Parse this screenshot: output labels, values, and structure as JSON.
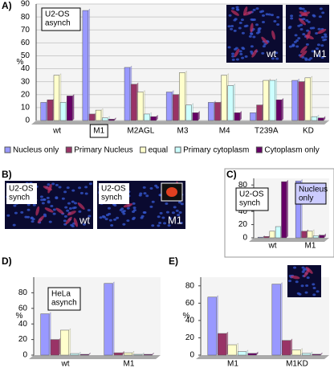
{
  "chart_data": [
    {
      "type": "bar",
      "panel": "A)",
      "annotation": [
        "U2-OS",
        "asynch"
      ],
      "inset_labels": [
        "wt",
        "M1"
      ],
      "y_label": "%",
      "categories": [
        "wt",
        "M1",
        "M2AGL",
        "M3",
        "M4",
        "T239A",
        "KD"
      ],
      "series": [
        {
          "name": "Nucleus only",
          "color": "#9999ff",
          "values": [
            14,
            85,
            41,
            22,
            14,
            6,
            31
          ]
        },
        {
          "name": "Primary Nucleus",
          "color": "#993366",
          "values": [
            16,
            5,
            28,
            20,
            14,
            12,
            30
          ]
        },
        {
          "name": "equal",
          "color": "#ffffcc",
          "values": [
            35,
            8,
            22,
            37,
            35,
            31,
            33
          ]
        },
        {
          "name": "Primary cytoplasm",
          "color": "#ccffff",
          "values": [
            14,
            2,
            5,
            12,
            27,
            31,
            3
          ]
        },
        {
          "name": "Cytoplasm only",
          "color": "#660066",
          "values": [
            19,
            1,
            3,
            6,
            6,
            16,
            2
          ]
        }
      ],
      "ylim": [
        0,
        90
      ],
      "yticks": [
        0,
        10,
        20,
        30,
        40,
        50,
        60,
        70,
        80,
        90
      ],
      "grid": true
    },
    {
      "type": "bar",
      "panel": "C)",
      "annotation": [
        "U2-OS",
        "synch"
      ],
      "note": [
        "Nucleus",
        "only"
      ],
      "y_label": "%",
      "categories": [
        "wt",
        "M1"
      ],
      "series": [
        {
          "name": "Nucleus only",
          "color": "#9999ff",
          "values": [
            1,
            86
          ]
        },
        {
          "name": "Primary Nucleus",
          "color": "#993366",
          "values": [
            2,
            10
          ]
        },
        {
          "name": "equal",
          "color": "#ffffcc",
          "values": [
            10,
            10
          ]
        },
        {
          "name": "Primary cytoplasm",
          "color": "#ccffff",
          "values": [
            17,
            3
          ]
        },
        {
          "name": "Cytoplasm only",
          "color": "#660066",
          "values": [
            85,
            4
          ]
        }
      ],
      "ylim": [
        0,
        90
      ],
      "yticks": [
        0,
        20,
        40,
        60,
        80
      ],
      "grid": false
    },
    {
      "type": "bar",
      "panel": "D)",
      "annotation": [
        "HeLa",
        "asynch"
      ],
      "y_label": "%",
      "categories": [
        "wt",
        "M1"
      ],
      "series": [
        {
          "name": "Nucleus only",
          "color": "#9999ff",
          "values": [
            53,
            92
          ]
        },
        {
          "name": "Primary Nucleus",
          "color": "#993366",
          "values": [
            20,
            3
          ]
        },
        {
          "name": "equal",
          "color": "#ffffcc",
          "values": [
            32,
            3
          ]
        },
        {
          "name": "Primary cytoplasm",
          "color": "#ccffff",
          "values": [
            2,
            1
          ]
        },
        {
          "name": "Cytoplasm only",
          "color": "#660066",
          "values": [
            1,
            1
          ]
        }
      ],
      "ylim": [
        0,
        100
      ],
      "yticks": [
        0,
        20,
        40,
        60,
        80
      ],
      "grid": false
    },
    {
      "type": "bar",
      "panel": "E)",
      "y_label": "%",
      "categories": [
        "M1",
        "M1KD"
      ],
      "series": [
        {
          "name": "Nucleus only",
          "color": "#9999ff",
          "values": [
            67,
            82
          ]
        },
        {
          "name": "Primary Nucleus",
          "color": "#993366",
          "values": [
            25,
            17
          ]
        },
        {
          "name": "equal",
          "color": "#ffffcc",
          "values": [
            12,
            6
          ]
        },
        {
          "name": "Primary cytoplasm",
          "color": "#ccffff",
          "values": [
            4,
            2
          ]
        },
        {
          "name": "Cytoplasm only",
          "color": "#660066",
          "values": [
            2,
            1
          ]
        }
      ],
      "ylim": [
        0,
        90
      ],
      "yticks": [
        0,
        20,
        40,
        60,
        80
      ],
      "grid": false
    }
  ],
  "panel_b": {
    "label": "B)",
    "images": [
      {
        "annotation": [
          "U2-OS",
          "synch"
        ],
        "label": "wt"
      },
      {
        "annotation": [
          "U2-OS",
          "synch"
        ],
        "label": "M1"
      }
    ]
  }
}
